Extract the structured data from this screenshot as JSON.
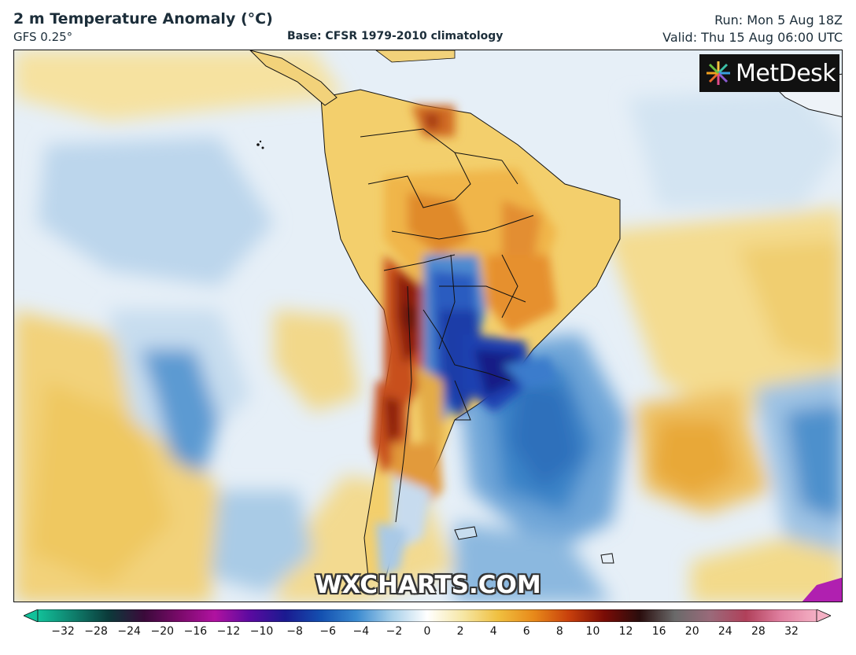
{
  "header": {
    "title": "2 m Temperature Anomaly (°C)",
    "model": "GFS 0.25°",
    "base": "Base: CFSR 1979-2010 climatology",
    "run": "Run: Mon 5 Aug 18Z",
    "valid": "Valid: Thu 15 Aug 06:00 UTC"
  },
  "branding": {
    "logo_text": "MetDesk",
    "watermark": "WXCHARTS.COM"
  },
  "legend": {
    "ticks": [
      "−32",
      "−28",
      "−24",
      "−20",
      "−16",
      "−12",
      "−10",
      "−8",
      "−6",
      "−4",
      "−2",
      "0",
      "2",
      "4",
      "6",
      "8",
      "10",
      "12",
      "16",
      "20",
      "24",
      "28",
      "32"
    ],
    "colors": [
      "#12c19a",
      "#0f7f6c",
      "#0b3a3a",
      "#3a0a3a",
      "#7a0a6a",
      "#b012a0",
      "#5a0aa0",
      "#1a1a90",
      "#1450b0",
      "#3a8ad0",
      "#a8d0ea",
      "#ffffff",
      "#f6e7a6",
      "#f0c040",
      "#e88a1a",
      "#c8400c",
      "#7a0c06",
      "#2a0d0d",
      "#6a6a6a",
      "#9a6a7a",
      "#b0405a",
      "#e080a0",
      "#f4b0c4"
    ]
  },
  "map": {
    "ocean_colors": {
      "cool": "#c9dff0",
      "cold": "#2f7fc6",
      "warm": "#f2d88a",
      "neutral": "#eaf2f8"
    },
    "land_colors": {
      "warm": "#f1c15c",
      "hot": "#d8641a",
      "very_hot": "#8a1c0c",
      "cold": "#2a56b5",
      "very_cold": "#141f8a"
    }
  }
}
